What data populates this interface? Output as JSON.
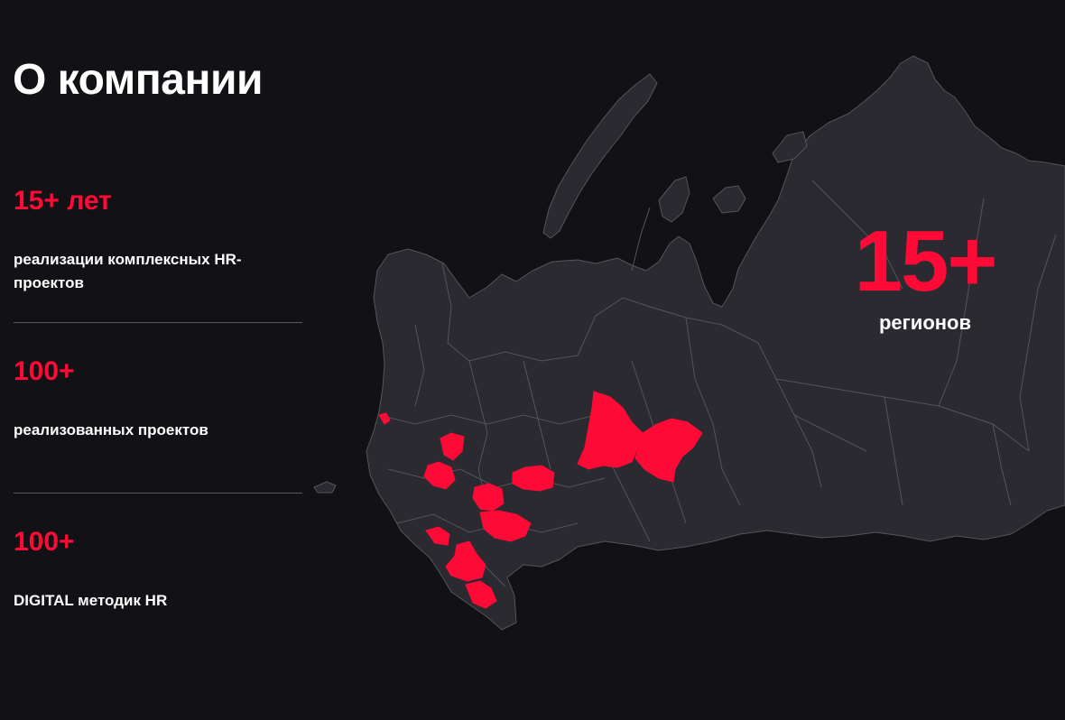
{
  "page": {
    "title": "О компании"
  },
  "stats": [
    {
      "value": "15+ лет",
      "description": "реализации комплексных HR-проектов"
    },
    {
      "value": "100+",
      "description": "реализованных проектов"
    },
    {
      "value": "100+",
      "description": "DIGITAL методик HR"
    }
  ],
  "map": {
    "region_count": "15+",
    "region_label": "регионов"
  },
  "colors": {
    "background": "#121115",
    "land": "#2b2a30",
    "border": "#55545b",
    "highlight": "#ff0a37"
  }
}
